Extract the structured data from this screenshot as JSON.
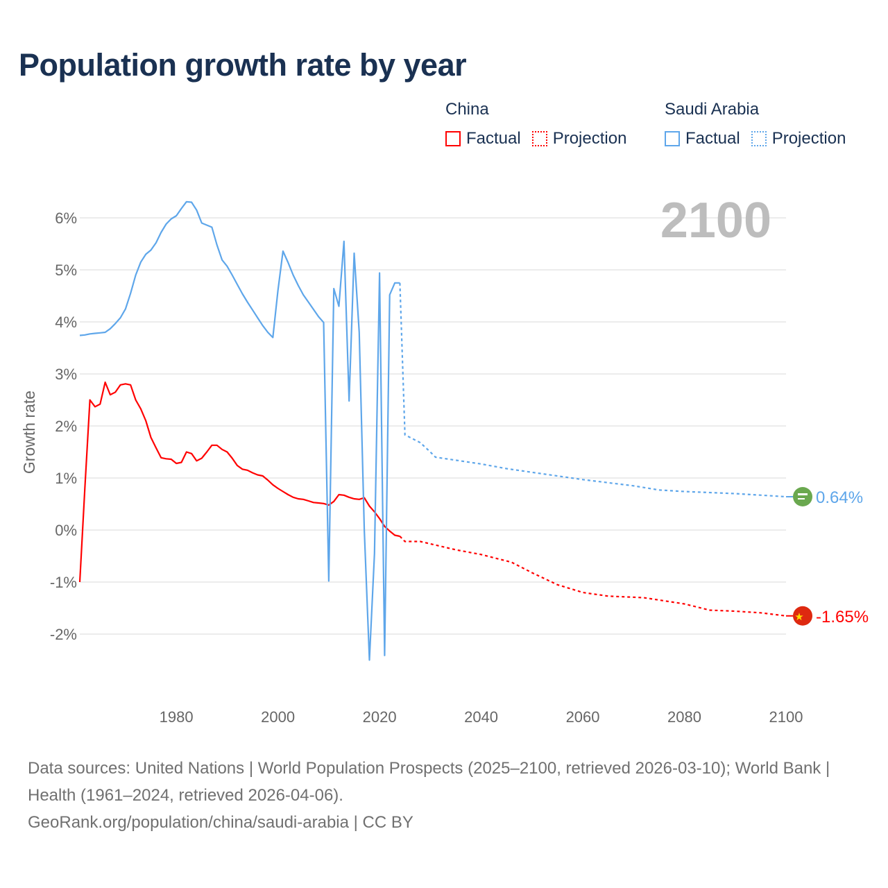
{
  "chart_data": {
    "type": "line",
    "title": "Population growth rate by year",
    "ylabel": "Growth rate",
    "xlabel": "",
    "xlim": [
      1961,
      2100
    ],
    "ylim": [
      -3,
      6.6
    ],
    "x_ticks": [
      "1980",
      "2000",
      "2020",
      "2040",
      "2060",
      "2080",
      "2100"
    ],
    "y_ticks": [
      "-2%",
      "-1%",
      "0%",
      "1%",
      "2%",
      "3%",
      "4%",
      "5%",
      "6%"
    ],
    "y_tick_values": [
      -2,
      -1,
      0,
      1,
      2,
      3,
      4,
      5,
      6
    ],
    "x_tick_values": [
      1980,
      2000,
      2020,
      2040,
      2060,
      2080,
      2100
    ],
    "grid": true,
    "year_overlay": "2100",
    "legend": {
      "placement": "top-right",
      "groups": [
        {
          "name": "China",
          "factual": "Factual",
          "projection": "Projection",
          "color": "#ff0000"
        },
        {
          "name": "Saudi Arabia",
          "factual": "Factual",
          "projection": "Projection",
          "color": "#5ea6ea"
        }
      ]
    },
    "series": [
      {
        "name": "China",
        "color": "#ff0000",
        "end_label": "-1.65%",
        "flag": "china-flag",
        "factual": [
          [
            1961,
            -1.0
          ],
          [
            1962,
            0.8
          ],
          [
            1963,
            2.5
          ],
          [
            1964,
            2.37
          ],
          [
            1965,
            2.42
          ],
          [
            1966,
            2.84
          ],
          [
            1967,
            2.6
          ],
          [
            1968,
            2.65
          ],
          [
            1969,
            2.79
          ],
          [
            1970,
            2.81
          ],
          [
            1971,
            2.79
          ],
          [
            1972,
            2.5
          ],
          [
            1973,
            2.33
          ],
          [
            1974,
            2.1
          ],
          [
            1975,
            1.78
          ],
          [
            1976,
            1.58
          ],
          [
            1977,
            1.39
          ],
          [
            1978,
            1.37
          ],
          [
            1979,
            1.36
          ],
          [
            1980,
            1.28
          ],
          [
            1981,
            1.3
          ],
          [
            1982,
            1.5
          ],
          [
            1983,
            1.47
          ],
          [
            1984,
            1.33
          ],
          [
            1985,
            1.38
          ],
          [
            1986,
            1.5
          ],
          [
            1987,
            1.63
          ],
          [
            1988,
            1.63
          ],
          [
            1989,
            1.55
          ],
          [
            1990,
            1.5
          ],
          [
            1991,
            1.38
          ],
          [
            1992,
            1.24
          ],
          [
            1993,
            1.17
          ],
          [
            1994,
            1.15
          ],
          [
            1995,
            1.1
          ],
          [
            1996,
            1.06
          ],
          [
            1997,
            1.04
          ],
          [
            1998,
            0.96
          ],
          [
            1999,
            0.87
          ],
          [
            2000,
            0.8
          ],
          [
            2001,
            0.74
          ],
          [
            2002,
            0.68
          ],
          [
            2003,
            0.63
          ],
          [
            2004,
            0.6
          ],
          [
            2005,
            0.59
          ],
          [
            2006,
            0.56
          ],
          [
            2007,
            0.53
          ],
          [
            2008,
            0.52
          ],
          [
            2009,
            0.51
          ],
          [
            2010,
            0.48
          ],
          [
            2011,
            0.55
          ],
          [
            2012,
            0.68
          ],
          [
            2013,
            0.67
          ],
          [
            2014,
            0.63
          ],
          [
            2015,
            0.6
          ],
          [
            2016,
            0.59
          ],
          [
            2017,
            0.62
          ],
          [
            2018,
            0.46
          ],
          [
            2019,
            0.35
          ],
          [
            2020,
            0.22
          ],
          [
            2021,
            0.07
          ],
          [
            2022,
            -0.02
          ],
          [
            2023,
            -0.1
          ],
          [
            2024,
            -0.12
          ]
        ],
        "projection": [
          [
            2024,
            -0.12
          ],
          [
            2025,
            -0.22
          ],
          [
            2028,
            -0.22
          ],
          [
            2035,
            -0.38
          ],
          [
            2040,
            -0.47
          ],
          [
            2046,
            -0.62
          ],
          [
            2050,
            -0.82
          ],
          [
            2055,
            -1.05
          ],
          [
            2060,
            -1.2
          ],
          [
            2065,
            -1.27
          ],
          [
            2072,
            -1.3
          ],
          [
            2080,
            -1.42
          ],
          [
            2085,
            -1.54
          ],
          [
            2090,
            -1.56
          ],
          [
            2095,
            -1.59
          ],
          [
            2100,
            -1.65
          ]
        ]
      },
      {
        "name": "Saudi Arabia",
        "color": "#5ea6ea",
        "end_label": "0.64%",
        "flag": "saudi-arabia-flag",
        "factual": [
          [
            1961,
            3.74
          ],
          [
            1962,
            3.75
          ],
          [
            1963,
            3.77
          ],
          [
            1964,
            3.78
          ],
          [
            1965,
            3.79
          ],
          [
            1966,
            3.8
          ],
          [
            1967,
            3.87
          ],
          [
            1968,
            3.97
          ],
          [
            1969,
            4.08
          ],
          [
            1970,
            4.25
          ],
          [
            1971,
            4.55
          ],
          [
            1972,
            4.9
          ],
          [
            1973,
            5.15
          ],
          [
            1974,
            5.3
          ],
          [
            1975,
            5.38
          ],
          [
            1976,
            5.52
          ],
          [
            1977,
            5.72
          ],
          [
            1978,
            5.88
          ],
          [
            1979,
            5.98
          ],
          [
            1980,
            6.04
          ],
          [
            1981,
            6.18
          ],
          [
            1982,
            6.31
          ],
          [
            1983,
            6.3
          ],
          [
            1984,
            6.15
          ],
          [
            1985,
            5.9
          ],
          [
            1986,
            5.86
          ],
          [
            1987,
            5.82
          ],
          [
            1988,
            5.48
          ],
          [
            1989,
            5.19
          ],
          [
            1990,
            5.07
          ],
          [
            1991,
            4.9
          ],
          [
            1992,
            4.72
          ],
          [
            1993,
            4.54
          ],
          [
            1994,
            4.38
          ],
          [
            1995,
            4.23
          ],
          [
            1996,
            4.08
          ],
          [
            1997,
            3.93
          ],
          [
            1998,
            3.8
          ],
          [
            1999,
            3.7
          ],
          [
            2000,
            4.6
          ],
          [
            2001,
            5.36
          ],
          [
            2002,
            5.14
          ],
          [
            2003,
            4.9
          ],
          [
            2004,
            4.7
          ],
          [
            2005,
            4.52
          ],
          [
            2006,
            4.38
          ],
          [
            2007,
            4.24
          ],
          [
            2008,
            4.1
          ],
          [
            2009,
            3.99
          ],
          [
            2010,
            -0.98
          ],
          [
            2011,
            4.64
          ],
          [
            2012,
            4.3
          ],
          [
            2013,
            5.55
          ],
          [
            2014,
            2.48
          ],
          [
            2015,
            5.32
          ],
          [
            2016,
            3.8
          ],
          [
            2017,
            0.0
          ],
          [
            2018,
            -2.5
          ],
          [
            2019,
            -0.45
          ],
          [
            2020,
            4.94
          ],
          [
            2021,
            -2.41
          ],
          [
            2022,
            4.52
          ],
          [
            2023,
            4.75
          ],
          [
            2024,
            4.75
          ]
        ],
        "projection": [
          [
            2024,
            4.75
          ],
          [
            2025,
            1.83
          ],
          [
            2028,
            1.68
          ],
          [
            2030,
            1.5
          ],
          [
            2031,
            1.4
          ],
          [
            2040,
            1.27
          ],
          [
            2045,
            1.18
          ],
          [
            2050,
            1.11
          ],
          [
            2060,
            0.97
          ],
          [
            2070,
            0.85
          ],
          [
            2075,
            0.77
          ],
          [
            2080,
            0.74
          ],
          [
            2090,
            0.7
          ],
          [
            2100,
            0.64
          ]
        ]
      }
    ]
  },
  "sources": {
    "line1": "Data sources: United Nations | World Population Prospects (2025–2100, retrieved 2026-03-10); World Bank | Health (1961–2024, retrieved 2026-04-06).",
    "line2": "GeoRank.org/population/china/saudi-arabia | CC BY"
  }
}
